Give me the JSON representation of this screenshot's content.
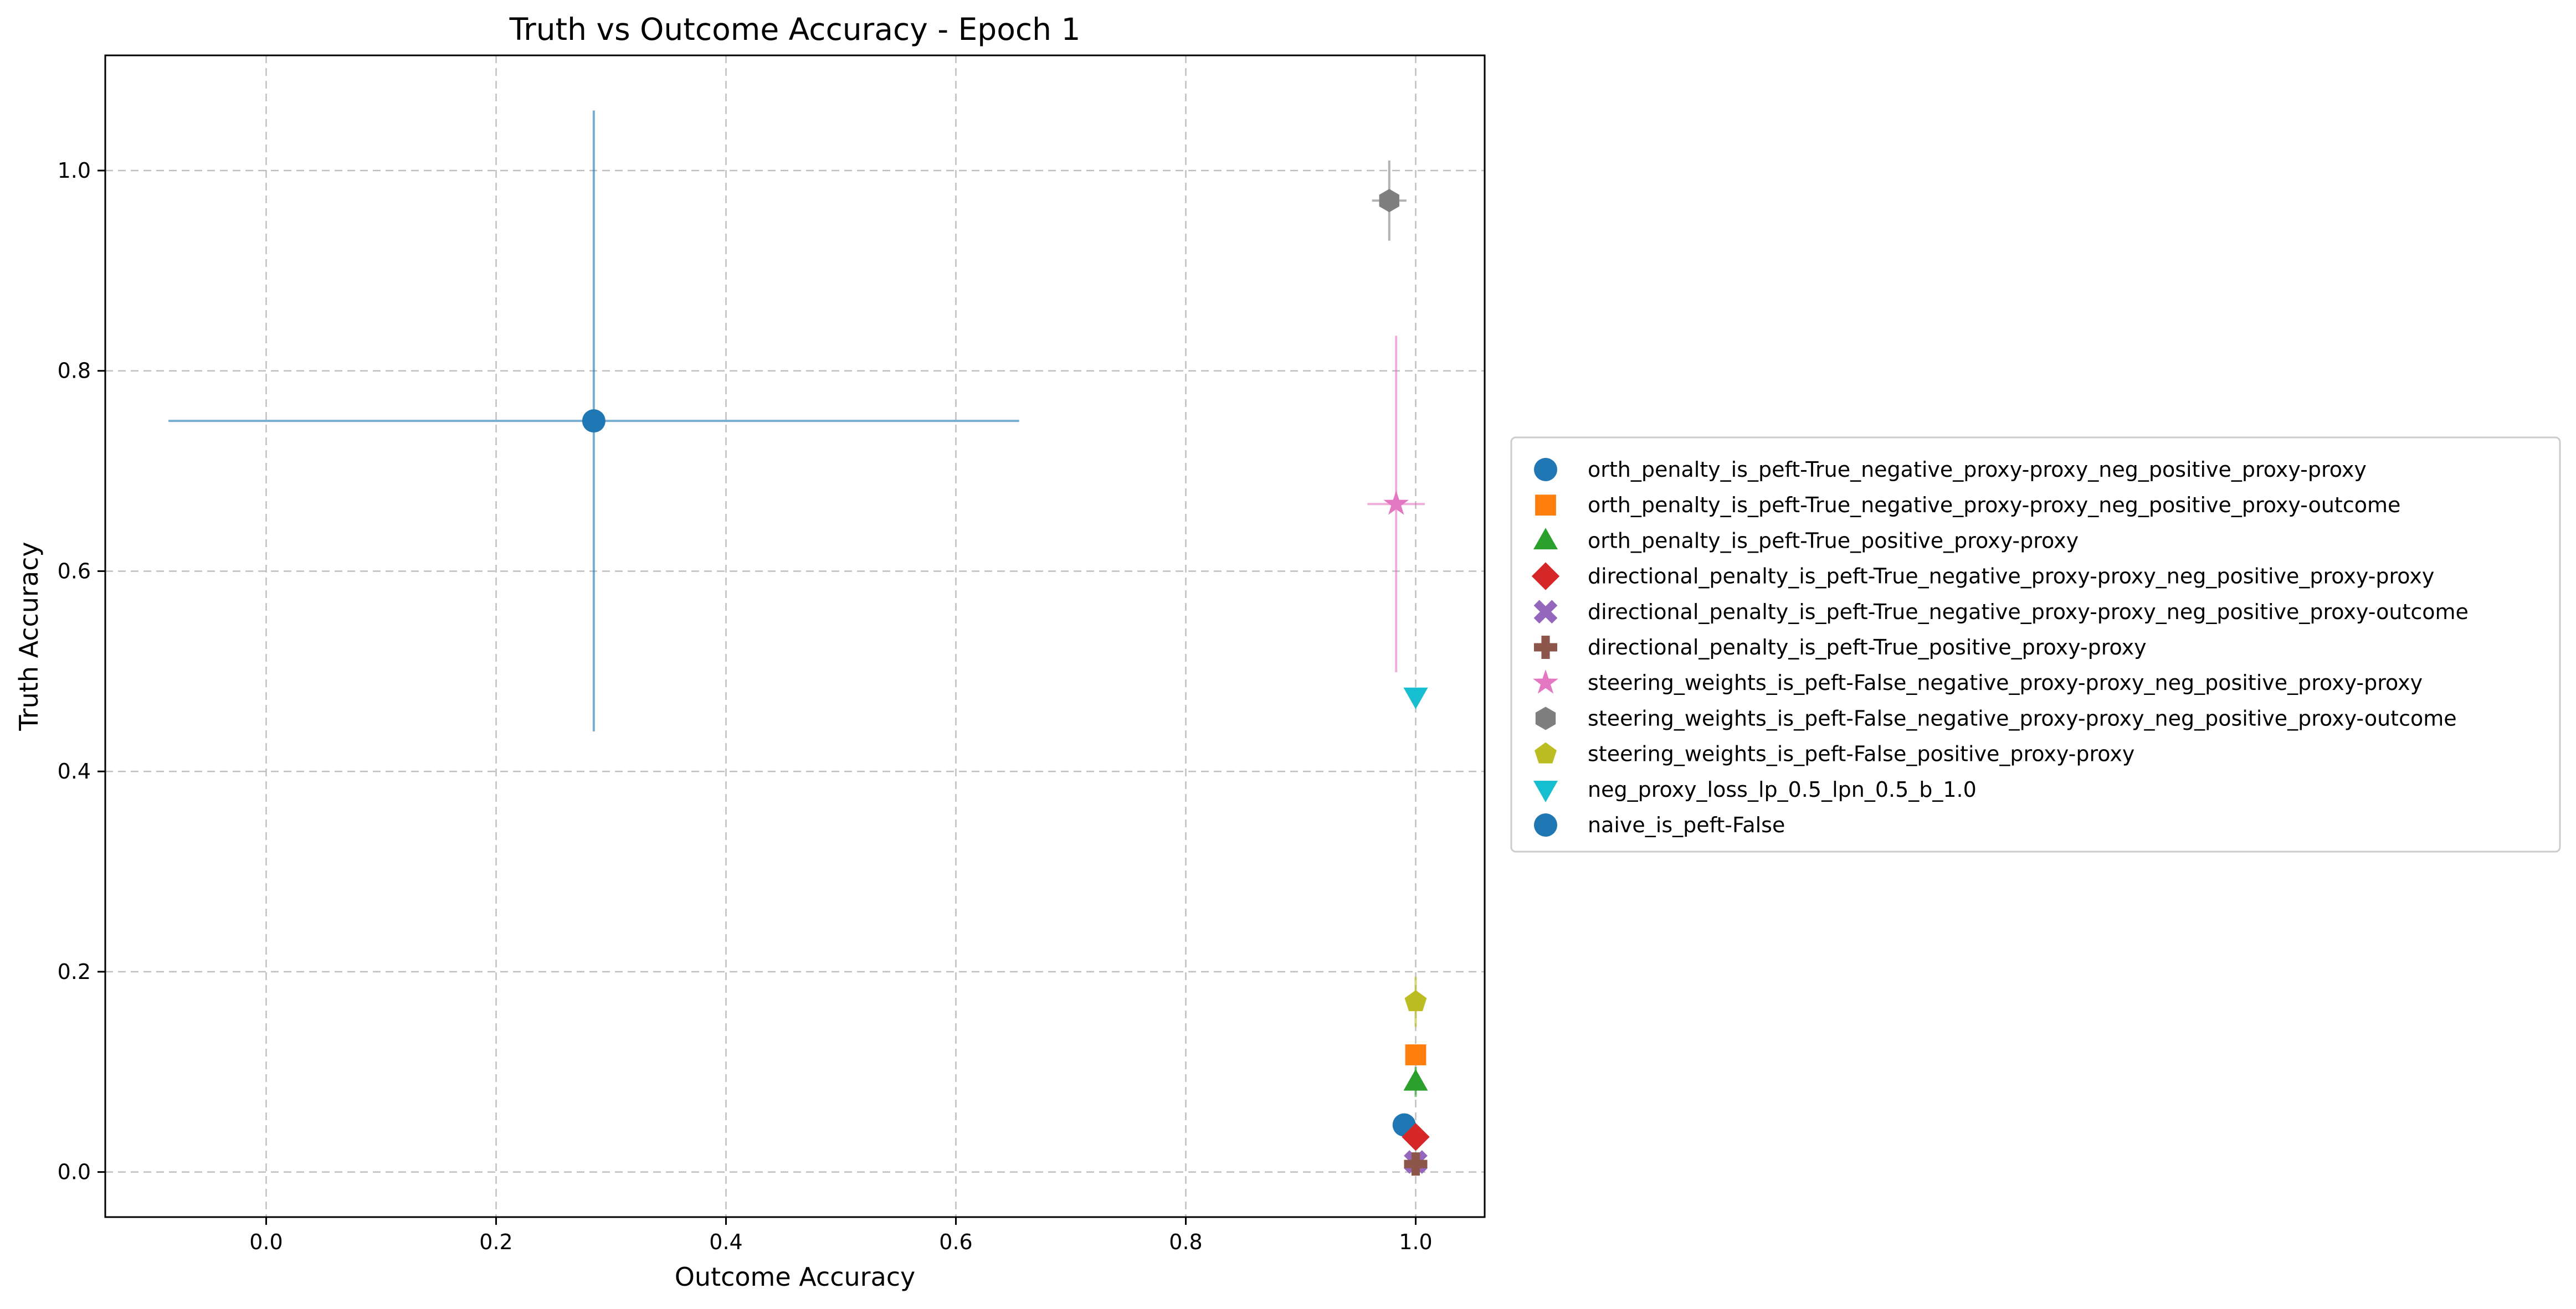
{
  "chart_data": {
    "type": "scatter",
    "title": "Truth vs Outcome Accuracy - Epoch 1",
    "xlabel": "Outcome Accuracy",
    "ylabel": "Truth Accuracy",
    "xlim": [
      -0.14,
      1.06
    ],
    "ylim": [
      -0.045,
      1.115
    ],
    "xticks": [
      0.0,
      0.2,
      0.4,
      0.6,
      0.8,
      1.0
    ],
    "xtick_labels": [
      "0.0",
      "0.2",
      "0.4",
      "0.6",
      "0.8",
      "1.0"
    ],
    "yticks": [
      0.0,
      0.2,
      0.4,
      0.6,
      0.8,
      1.0
    ],
    "ytick_labels": [
      "0.0",
      "0.2",
      "0.4",
      "0.6",
      "0.8",
      "1.0"
    ],
    "grid": true,
    "grid_style": "dashed",
    "legend_placement": "outside right",
    "series": [
      {
        "name": "orth_penalty_is_peft-True_negative_proxy-proxy_neg_positive_proxy-proxy",
        "marker": "circle",
        "color": "#1f77b4",
        "x": 0.99,
        "y": 0.047,
        "xerr": 0.0,
        "yerr": 0.0
      },
      {
        "name": "orth_penalty_is_peft-True_negative_proxy-proxy_neg_positive_proxy-outcome",
        "marker": "square",
        "color": "#ff7f0e",
        "x": 1.0,
        "y": 0.117,
        "xerr": 0.0,
        "yerr": 0.0
      },
      {
        "name": "orth_penalty_is_peft-True_positive_proxy-proxy",
        "marker": "triangle-up",
        "color": "#2ca02c",
        "x": 1.0,
        "y": 0.09,
        "xerr": 0.0,
        "yerr": 0.015
      },
      {
        "name": "directional_penalty_is_peft-True_negative_proxy-proxy_neg_positive_proxy-proxy",
        "marker": "diamond",
        "color": "#d62728",
        "x": 1.0,
        "y": 0.035,
        "xerr": 0.0,
        "yerr": 0.0
      },
      {
        "name": "directional_penalty_is_peft-True_negative_proxy-proxy_neg_positive_proxy-outcome",
        "marker": "x-filled",
        "color": "#9467bd",
        "x": 1.0,
        "y": 0.01,
        "xerr": 0.0,
        "yerr": 0.0
      },
      {
        "name": "directional_penalty_is_peft-True_positive_proxy-proxy",
        "marker": "plus-filled",
        "color": "#8c564b",
        "x": 1.0,
        "y": 0.008,
        "xerr": 0.0,
        "yerr": 0.0
      },
      {
        "name": "steering_weights_is_peft-False_negative_proxy-proxy_neg_positive_proxy-proxy",
        "marker": "star",
        "color": "#e377c2",
        "x": 0.983,
        "y": 0.667,
        "xerr": 0.025,
        "yerr": 0.168
      },
      {
        "name": "steering_weights_is_peft-False_negative_proxy-proxy_neg_positive_proxy-outcome",
        "marker": "hexagon",
        "color": "#7f7f7f",
        "x": 0.977,
        "y": 0.97,
        "xerr": 0.015,
        "yerr": 0.04
      },
      {
        "name": "steering_weights_is_peft-False_positive_proxy-proxy",
        "marker": "pentagon",
        "color": "#bcbd22",
        "x": 1.0,
        "y": 0.17,
        "xerr": 0.0,
        "yerr": 0.025
      },
      {
        "name": "neg_proxy_loss_lp_0.5_lpn_0.5_b_1.0",
        "marker": "triangle-down",
        "color": "#17becf",
        "x": 1.0,
        "y": 0.475,
        "xerr": 0.0,
        "yerr": 0.0
      },
      {
        "name": "naive_is_peft-False",
        "marker": "circle",
        "color": "#1f77b4",
        "x": 0.285,
        "y": 0.75,
        "xerr": 0.37,
        "yerr": 0.31
      }
    ]
  }
}
